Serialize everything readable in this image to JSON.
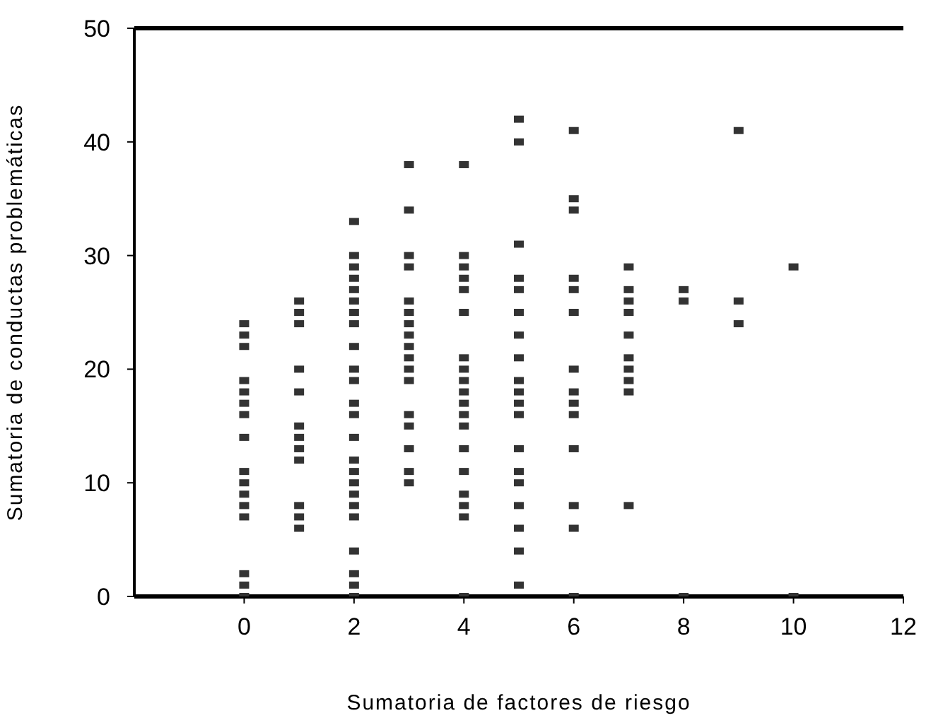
{
  "chart_data": {
    "type": "scatter",
    "xlabel": "Sumatoria de factores de riesgo",
    "ylabel": "Sumatoria de conductas problemáticas",
    "color": "#333333",
    "marker": "square",
    "x": [
      0,
      0,
      0,
      0,
      0,
      0,
      0,
      0,
      0,
      0,
      0,
      0,
      0,
      0,
      0,
      0,
      1,
      1,
      1,
      1,
      1,
      1,
      1,
      1,
      1,
      1,
      1,
      1,
      2,
      2,
      2,
      2,
      2,
      2,
      2,
      2,
      2,
      2,
      2,
      2,
      2,
      2,
      2,
      2,
      2,
      2,
      2,
      2,
      2,
      2,
      2,
      2,
      3,
      3,
      3,
      3,
      3,
      3,
      3,
      3,
      3,
      3,
      3,
      3,
      3,
      3,
      3,
      3,
      3,
      4,
      4,
      4,
      4,
      4,
      4,
      4,
      4,
      4,
      4,
      4,
      4,
      4,
      4,
      4,
      4,
      4,
      4,
      4,
      5,
      5,
      5,
      5,
      5,
      5,
      5,
      5,
      5,
      5,
      5,
      5,
      5,
      5,
      5,
      5,
      5,
      5,
      5,
      6,
      6,
      6,
      6,
      6,
      6,
      6,
      6,
      6,
      6,
      6,
      6,
      6,
      6,
      7,
      7,
      7,
      7,
      7,
      7,
      7,
      7,
      7,
      7,
      8,
      8,
      8,
      9,
      9,
      9,
      10,
      10
    ],
    "values": [
      24,
      23,
      22,
      19,
      18,
      17,
      16,
      14,
      11,
      10,
      9,
      8,
      7,
      2,
      1,
      0,
      26,
      25,
      24,
      20,
      18,
      15,
      14,
      13,
      12,
      8,
      7,
      6,
      33,
      30,
      29,
      28,
      27,
      26,
      25,
      24,
      22,
      20,
      19,
      17,
      16,
      14,
      12,
      11,
      10,
      9,
      8,
      7,
      4,
      2,
      1,
      0,
      38,
      34,
      30,
      29,
      26,
      25,
      24,
      23,
      22,
      21,
      20,
      19,
      16,
      15,
      13,
      11,
      10,
      38,
      30,
      29,
      28,
      27,
      25,
      21,
      20,
      19,
      18,
      17,
      16,
      15,
      13,
      11,
      9,
      8,
      7,
      0,
      42,
      40,
      31,
      28,
      27,
      25,
      23,
      21,
      19,
      18,
      17,
      16,
      13,
      11,
      10,
      8,
      6,
      4,
      1,
      41,
      35,
      34,
      28,
      27,
      25,
      20,
      18,
      17,
      16,
      13,
      8,
      6,
      0,
      29,
      27,
      26,
      25,
      23,
      21,
      20,
      19,
      18,
      8,
      27,
      26,
      0,
      41,
      26,
      24,
      29,
      0
    ],
    "xlim": [
      -2,
      12
    ],
    "xticks": [
      0,
      2,
      4,
      6,
      8,
      10,
      12
    ],
    "ylim": [
      0,
      50
    ],
    "yticks": [
      0,
      10,
      20,
      30,
      40,
      50
    ]
  }
}
